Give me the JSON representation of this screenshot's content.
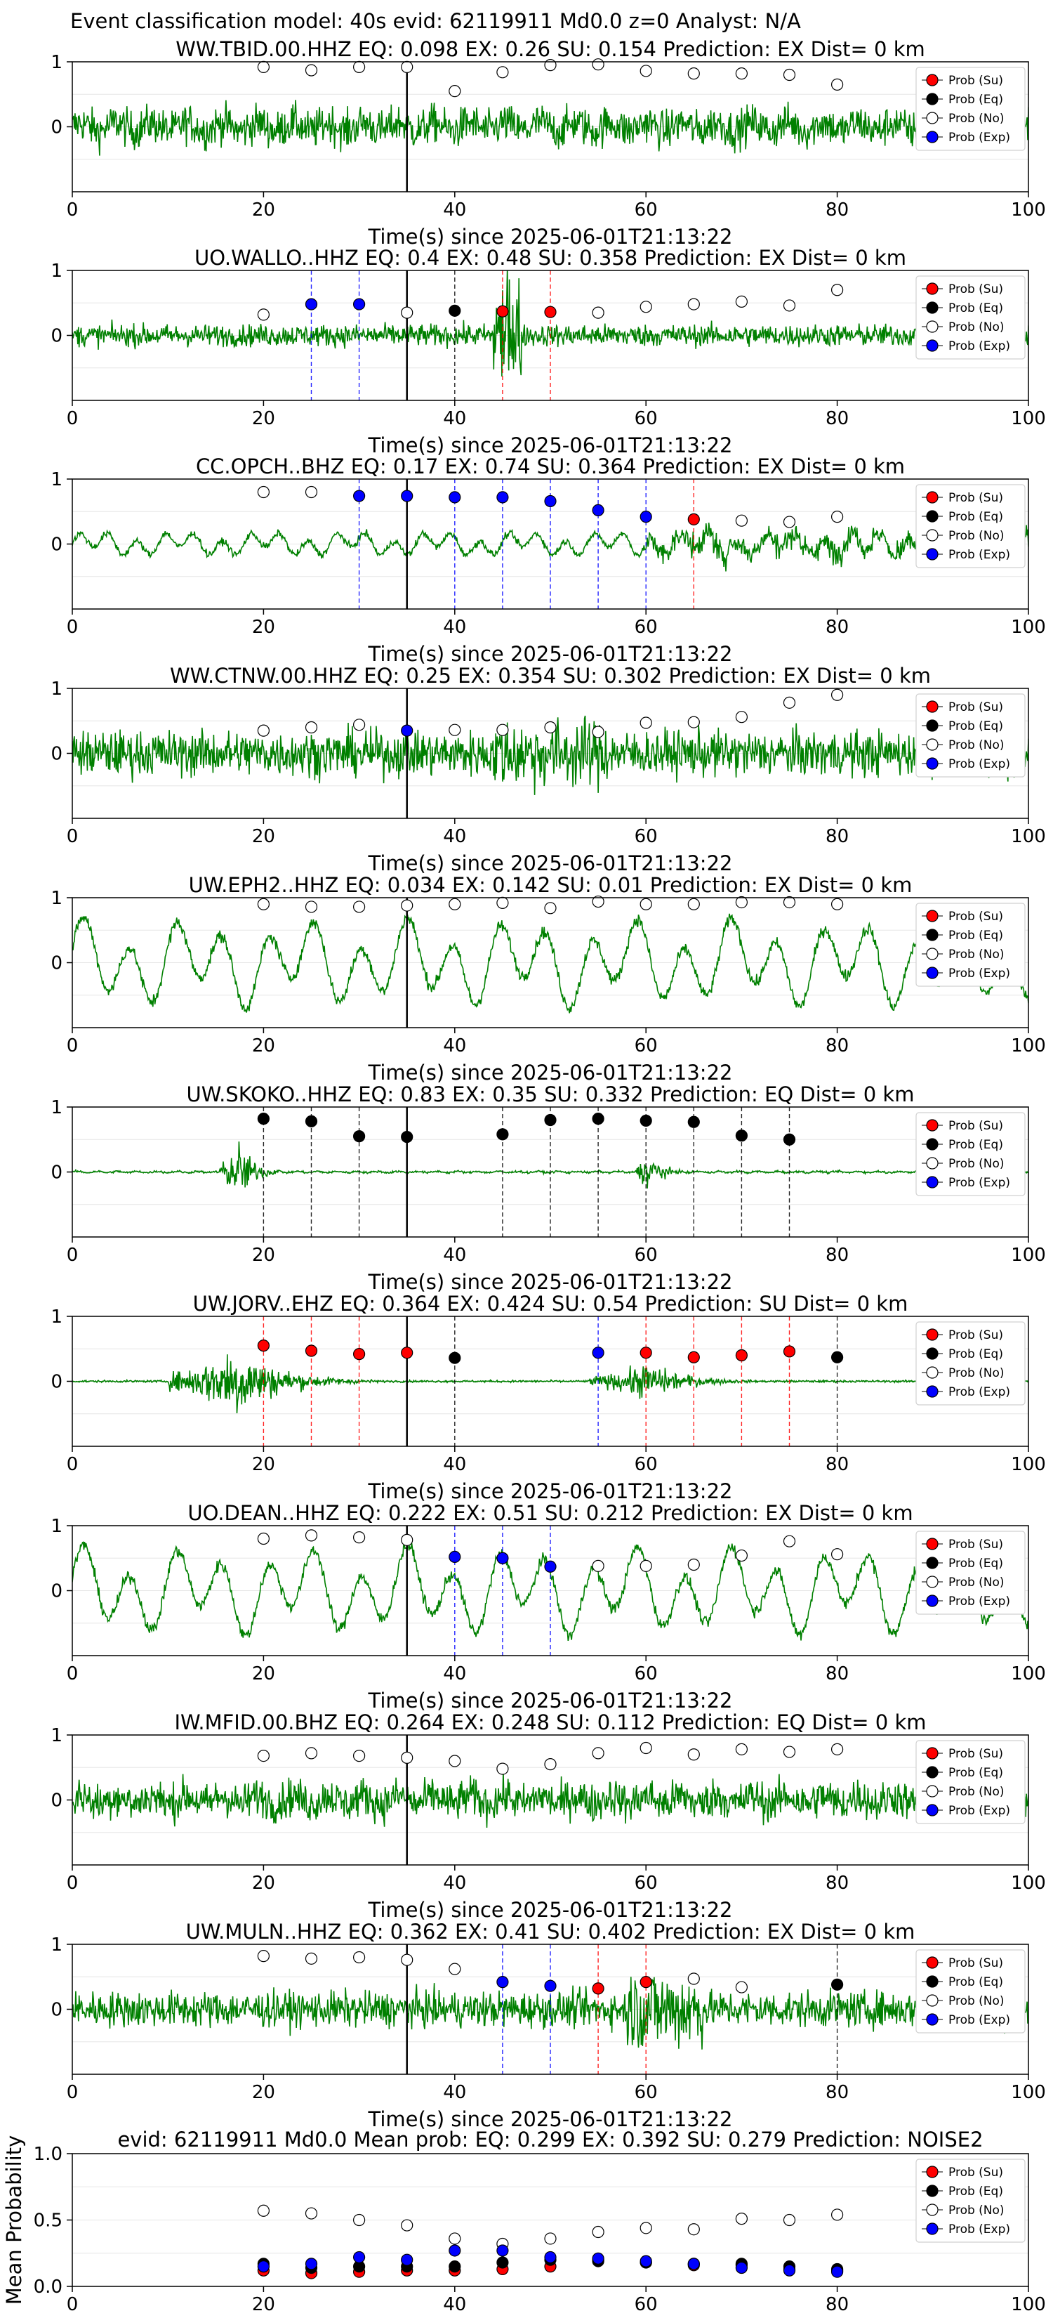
{
  "suptitle": "Event classification model: 40s evid: 62119911 Md0.0 z=0 Analyst: N/A",
  "xlabel": "Time(s) since 2025-06-01T21:13:22",
  "legend": [
    "Prob (Su)",
    "Prob (Eq)",
    "Prob (No)",
    "Prob (Exp)"
  ],
  "colors": {
    "su": "#ff0000",
    "eq": "#000000",
    "no": "#ffffff",
    "exp": "#0000ff",
    "trace": "#008000"
  },
  "x_ticks": [
    "0",
    "20",
    "40",
    "60",
    "80",
    "100"
  ],
  "y_ticks_station": [
    "1",
    "0"
  ],
  "y_ticks_mean": [
    "1.0",
    "0.5",
    "0.0"
  ],
  "event_marker_x": 35,
  "chart_data": [
    {
      "type": "line",
      "title": "WW.TBID.00.HHZ   EQ: 0.098   EX: 0.26   SU: 0.154   Prediction: EX    Dist= 0 km",
      "xlim": [
        0,
        100
      ],
      "ylim": [
        -1,
        1
      ],
      "trace_style": "noise",
      "points": [
        [
          20,
          0.92,
          "no"
        ],
        [
          25,
          0.87,
          "no"
        ],
        [
          30,
          0.92,
          "no"
        ],
        [
          35,
          0.92,
          "no"
        ],
        [
          40,
          0.55,
          "no"
        ],
        [
          45,
          0.84,
          "no"
        ],
        [
          50,
          0.95,
          "no"
        ],
        [
          55,
          0.96,
          "no"
        ],
        [
          60,
          0.86,
          "no"
        ],
        [
          65,
          0.82,
          "no"
        ],
        [
          70,
          0.82,
          "no"
        ],
        [
          75,
          0.8,
          "no"
        ],
        [
          80,
          0.65,
          "no"
        ]
      ]
    },
    {
      "type": "line",
      "title": "UO.WALLO..HHZ   EQ: 0.4   EX: 0.48   SU: 0.358   Prediction: EX    Dist= 0 km",
      "xlim": [
        0,
        100
      ],
      "ylim": [
        -1,
        1
      ],
      "trace_style": "noise_spike",
      "points": [
        [
          20,
          0.32,
          "no"
        ],
        [
          25,
          0.48,
          "exp"
        ],
        [
          30,
          0.48,
          "exp"
        ],
        [
          35,
          0.35,
          "no"
        ],
        [
          40,
          0.38,
          "eq"
        ],
        [
          45,
          0.37,
          "su"
        ],
        [
          50,
          0.36,
          "su"
        ],
        [
          55,
          0.35,
          "no"
        ],
        [
          60,
          0.44,
          "no"
        ],
        [
          65,
          0.48,
          "no"
        ],
        [
          70,
          0.52,
          "no"
        ],
        [
          75,
          0.46,
          "no"
        ],
        [
          80,
          0.7,
          "no"
        ]
      ]
    },
    {
      "type": "line",
      "title": "CC.OPCH..BHZ   EQ: 0.17   EX: 0.74   SU: 0.364   Prediction: EX    Dist= 0 km",
      "xlim": [
        0,
        100
      ],
      "ylim": [
        -1,
        1
      ],
      "trace_style": "wavy",
      "points": [
        [
          20,
          0.8,
          "no"
        ],
        [
          25,
          0.8,
          "no"
        ],
        [
          30,
          0.74,
          "exp"
        ],
        [
          35,
          0.74,
          "exp"
        ],
        [
          40,
          0.72,
          "exp"
        ],
        [
          45,
          0.72,
          "exp"
        ],
        [
          50,
          0.66,
          "exp"
        ],
        [
          55,
          0.52,
          "exp"
        ],
        [
          60,
          0.42,
          "exp"
        ],
        [
          65,
          0.38,
          "su"
        ],
        [
          70,
          0.36,
          "no"
        ],
        [
          75,
          0.34,
          "no"
        ],
        [
          80,
          0.42,
          "no"
        ]
      ]
    },
    {
      "type": "line",
      "title": "WW.CTNW.00.HHZ   EQ: 0.25   EX: 0.354   SU: 0.302   Prediction: EX    Dist= 0 km",
      "xlim": [
        0,
        100
      ],
      "ylim": [
        -1,
        1
      ],
      "trace_style": "noise_dense",
      "points": [
        [
          20,
          0.35,
          "no"
        ],
        [
          25,
          0.4,
          "no"
        ],
        [
          30,
          0.44,
          "no"
        ],
        [
          35,
          0.35,
          "exp"
        ],
        [
          40,
          0.36,
          "no"
        ],
        [
          45,
          0.36,
          "no"
        ],
        [
          50,
          0.4,
          "no"
        ],
        [
          55,
          0.33,
          "no"
        ],
        [
          60,
          0.47,
          "no"
        ],
        [
          65,
          0.48,
          "no"
        ],
        [
          70,
          0.56,
          "no"
        ],
        [
          75,
          0.78,
          "no"
        ],
        [
          80,
          0.9,
          "no"
        ]
      ]
    },
    {
      "type": "line",
      "title": "UW.EPH2..HHZ   EQ: 0.034   EX: 0.142   SU: 0.01   Prediction: EX    Dist= 0 km",
      "xlim": [
        0,
        100
      ],
      "ylim": [
        -1,
        1
      ],
      "trace_style": "wavy_big",
      "points": [
        [
          20,
          0.9,
          "no"
        ],
        [
          25,
          0.86,
          "no"
        ],
        [
          30,
          0.86,
          "no"
        ],
        [
          35,
          0.88,
          "no"
        ],
        [
          40,
          0.9,
          "no"
        ],
        [
          45,
          0.92,
          "no"
        ],
        [
          50,
          0.84,
          "no"
        ],
        [
          55,
          0.94,
          "no"
        ],
        [
          60,
          0.9,
          "no"
        ],
        [
          65,
          0.9,
          "no"
        ],
        [
          70,
          0.93,
          "no"
        ],
        [
          75,
          0.93,
          "no"
        ],
        [
          80,
          0.9,
          "no"
        ]
      ]
    },
    {
      "type": "line",
      "title": "UW.SKOKO..HHZ   EQ: 0.83   EX: 0.35   SU: 0.332   Prediction: EQ    Dist= 0 km",
      "xlim": [
        0,
        100
      ],
      "ylim": [
        -1,
        1
      ],
      "trace_style": "quiet_bursts",
      "points": [
        [
          20,
          0.82,
          "eq"
        ],
        [
          25,
          0.78,
          "eq"
        ],
        [
          30,
          0.55,
          "eq"
        ],
        [
          35,
          0.54,
          "eq"
        ],
        [
          45,
          0.58,
          "eq"
        ],
        [
          50,
          0.8,
          "eq"
        ],
        [
          55,
          0.82,
          "eq"
        ],
        [
          60,
          0.79,
          "eq"
        ],
        [
          65,
          0.77,
          "eq"
        ],
        [
          70,
          0.56,
          "eq"
        ],
        [
          75,
          0.5,
          "eq"
        ]
      ]
    },
    {
      "type": "line",
      "title": "UW.JORV..EHZ   EQ: 0.364   EX: 0.424   SU: 0.54   Prediction: SU    Dist= 0 km",
      "xlim": [
        0,
        100
      ],
      "ylim": [
        -1,
        1
      ],
      "trace_style": "quiet_events",
      "points": [
        [
          20,
          0.55,
          "su"
        ],
        [
          25,
          0.47,
          "su"
        ],
        [
          30,
          0.42,
          "su"
        ],
        [
          35,
          0.44,
          "su"
        ],
        [
          40,
          0.36,
          "eq"
        ],
        [
          55,
          0.44,
          "exp"
        ],
        [
          60,
          0.44,
          "su"
        ],
        [
          65,
          0.37,
          "su"
        ],
        [
          70,
          0.4,
          "su"
        ],
        [
          75,
          0.46,
          "su"
        ],
        [
          80,
          0.37,
          "eq"
        ]
      ]
    },
    {
      "type": "line",
      "title": "UO.DEAN..HHZ   EQ: 0.222   EX: 0.51   SU: 0.212   Prediction: EX    Dist= 0 km",
      "xlim": [
        0,
        100
      ],
      "ylim": [
        -1,
        1
      ],
      "trace_style": "wavy_big",
      "points": [
        [
          20,
          0.8,
          "no"
        ],
        [
          25,
          0.85,
          "no"
        ],
        [
          30,
          0.82,
          "no"
        ],
        [
          35,
          0.78,
          "no"
        ],
        [
          40,
          0.52,
          "exp"
        ],
        [
          45,
          0.5,
          "exp"
        ],
        [
          50,
          0.37,
          "exp"
        ],
        [
          55,
          0.38,
          "no"
        ],
        [
          60,
          0.38,
          "no"
        ],
        [
          65,
          0.4,
          "no"
        ],
        [
          70,
          0.54,
          "no"
        ],
        [
          75,
          0.76,
          "no"
        ],
        [
          80,
          0.56,
          "no"
        ]
      ]
    },
    {
      "type": "line",
      "title": "IW.MFID.00.BHZ   EQ: 0.264   EX: 0.248   SU: 0.112   Prediction: EQ    Dist= 0 km",
      "xlim": [
        0,
        100
      ],
      "ylim": [
        -1,
        1
      ],
      "trace_style": "noise",
      "points": [
        [
          20,
          0.68,
          "no"
        ],
        [
          25,
          0.72,
          "no"
        ],
        [
          30,
          0.68,
          "no"
        ],
        [
          35,
          0.65,
          "no"
        ],
        [
          40,
          0.6,
          "no"
        ],
        [
          45,
          0.48,
          "no"
        ],
        [
          50,
          0.55,
          "no"
        ],
        [
          55,
          0.72,
          "no"
        ],
        [
          60,
          0.8,
          "no"
        ],
        [
          65,
          0.7,
          "no"
        ],
        [
          70,
          0.78,
          "no"
        ],
        [
          75,
          0.74,
          "no"
        ],
        [
          80,
          0.78,
          "no"
        ]
      ]
    },
    {
      "type": "line",
      "title": "UW.MULN..HHZ   EQ: 0.362   EX: 0.41   SU: 0.402   Prediction: EX    Dist= 0 km",
      "xlim": [
        0,
        100
      ],
      "ylim": [
        -1,
        1
      ],
      "trace_style": "noise_burst",
      "points": [
        [
          20,
          0.82,
          "no"
        ],
        [
          25,
          0.78,
          "no"
        ],
        [
          30,
          0.8,
          "no"
        ],
        [
          35,
          0.76,
          "no"
        ],
        [
          40,
          0.62,
          "no"
        ],
        [
          45,
          0.42,
          "exp"
        ],
        [
          50,
          0.36,
          "exp"
        ],
        [
          55,
          0.32,
          "su"
        ],
        [
          60,
          0.42,
          "su"
        ],
        [
          65,
          0.47,
          "no"
        ],
        [
          70,
          0.34,
          "no"
        ],
        [
          80,
          0.38,
          "eq"
        ]
      ]
    },
    {
      "type": "scatter",
      "title": "evid: 62119911  Md0.0   Mean prob:   EQ: 0.299   EX: 0.392   SU: 0.279   Prediction: NOISE2",
      "ylabel": "Mean Probability",
      "xlim": [
        0,
        100
      ],
      "ylim": [
        0,
        1
      ],
      "x": [
        20,
        25,
        30,
        35,
        40,
        45,
        50,
        55,
        60,
        65,
        70,
        75,
        80
      ],
      "series": [
        {
          "name": "Prob (Su)",
          "key": "su",
          "values": [
            0.12,
            0.1,
            0.11,
            0.12,
            0.12,
            0.13,
            0.15,
            0.2,
            0.18,
            0.16,
            0.16,
            0.13,
            0.12
          ]
        },
        {
          "name": "Prob (Eq)",
          "key": "eq",
          "values": [
            0.17,
            0.14,
            0.15,
            0.15,
            0.15,
            0.18,
            0.2,
            0.19,
            0.18,
            0.17,
            0.17,
            0.15,
            0.13
          ]
        },
        {
          "name": "Prob (No)",
          "key": "no",
          "values": [
            0.57,
            0.55,
            0.5,
            0.46,
            0.36,
            0.32,
            0.36,
            0.41,
            0.44,
            0.43,
            0.51,
            0.5,
            0.54
          ]
        },
        {
          "name": "Prob (Exp)",
          "key": "exp",
          "values": [
            0.15,
            0.17,
            0.22,
            0.2,
            0.27,
            0.27,
            0.22,
            0.21,
            0.19,
            0.17,
            0.14,
            0.12,
            0.11
          ]
        }
      ]
    }
  ]
}
